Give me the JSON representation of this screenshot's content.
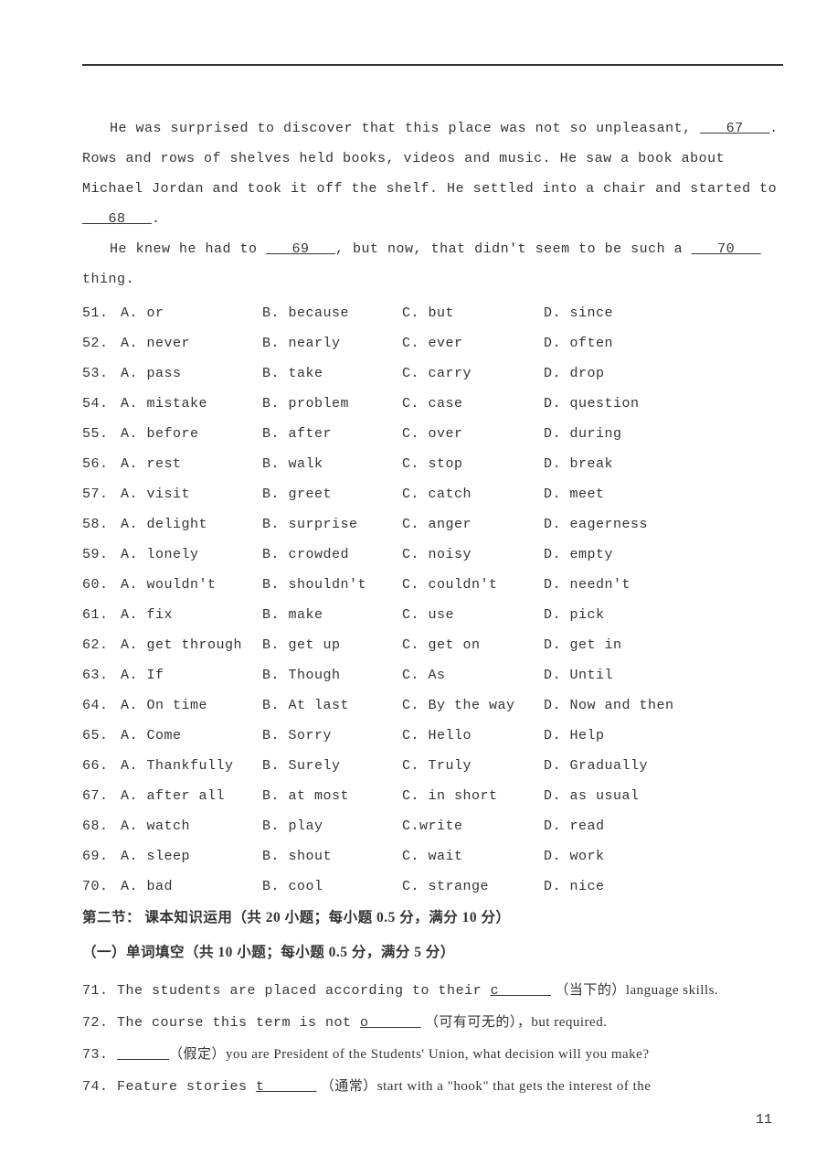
{
  "passage": {
    "p1_a": "He was surprised to discover that this place was not so unpleasant, ",
    "blank67": "   67   ",
    "p1_b": ". Rows and rows of shelves held books, videos and music. He saw a book about Michael Jordan and took it off the shelf. He settled into a chair and started to ",
    "blank68": "   68   ",
    "p1_c": ".",
    "p2_a": "He knew he had to ",
    "blank69": "   69   ",
    "p2_b": ", but now, that didn't seem to be such a ",
    "blank70": "   70   ",
    "p2_c": " thing."
  },
  "options": [
    {
      "n": "51.",
      "a": "A. or",
      "b": "B. because",
      "c": "C. but",
      "d": "D. since"
    },
    {
      "n": "52.",
      "a": "A. never",
      "b": "B. nearly",
      "c": "C. ever",
      "d": "D. often"
    },
    {
      "n": "53.",
      "a": "A. pass",
      "b": "B. take",
      "c": "C. carry",
      "d": "D. drop"
    },
    {
      "n": "54.",
      "a": "A. mistake",
      "b": "B. problem",
      "c": "C. case",
      "d": "D. question"
    },
    {
      "n": "55.",
      "a": "A. before",
      "b": "B. after",
      "c": "C. over",
      "d": "D. during"
    },
    {
      "n": "56.",
      "a": "A. rest",
      "b": "B. walk",
      "c": "C. stop",
      "d": "D. break"
    },
    {
      "n": "57.",
      "a": "A. visit",
      "b": "B. greet",
      "c": "C. catch",
      "d": "D. meet"
    },
    {
      "n": "58.",
      "a": "A. delight",
      "b": "B. surprise",
      "c": "C. anger",
      "d": "D. eagerness"
    },
    {
      "n": "59.",
      "a": "A. lonely",
      "b": "B. crowded",
      "c": "C. noisy",
      "d": "D. empty"
    },
    {
      "n": "60.",
      "a": "A. wouldn't",
      "b": "B. shouldn't",
      "c": "C. couldn't",
      "d": "D. needn't"
    },
    {
      "n": "61.",
      "a": "A. fix",
      "b": "B. make",
      "c": "C. use",
      "d": "D. pick"
    },
    {
      "n": "62.",
      "a": "A. get through",
      "b": "B. get up",
      "c": "C. get on",
      "d": "D. get in"
    },
    {
      "n": "63.",
      "a": "A. If",
      "b": "B. Though",
      "c": "C. As",
      "d": "D. Until"
    },
    {
      "n": "64.",
      "a": "A. On time",
      "b": "B. At last",
      "c": "C. By the way",
      "d": "D. Now and then"
    },
    {
      "n": "65.",
      "a": "A. Come",
      "b": "B. Sorry",
      "c": "C. Hello",
      "d": "D. Help"
    },
    {
      "n": "66.",
      "a": "A. Thankfully",
      "b": "B. Surely",
      "c": "C. Truly",
      "d": "D. Gradually"
    },
    {
      "n": "67.",
      "a": "A. after all",
      "b": "B. at most",
      "c": "C. in short",
      "d": "D. as usual"
    },
    {
      "n": "68.",
      "a": "A. watch",
      "b": "B. play",
      "c": "C.write",
      "d": "D. read"
    },
    {
      "n": "69.",
      "a": "A. sleep",
      "b": "B. shout",
      "c": "C. wait",
      "d": "D. work"
    },
    {
      "n": "70.",
      "a": "A. bad",
      "b": "B. cool",
      "c": "C. strange",
      "d": "D. nice"
    }
  ],
  "section2_header": "第二节：  课本知识运用（共 20 小题；每小题 0.5 分，满分 10 分）",
  "sub_header": "（一）单词填空（共 10 小题；每小题 0.5 分，满分 5 分）",
  "fills": {
    "q71_a": "71. The students are placed according to their ",
    "q71_u": "c      ",
    "q71_b": " （当下的）language skills.",
    "q72_a": "72. The course this term is not ",
    "q72_u": "o      ",
    "q72_b": " （可有可无的），but required.",
    "q73_a": "73. ",
    "q73_u": "      ",
    "q73_b": "（假定）you are President of the Students'  Union, what decision will you make?",
    "q74_a": "74. Feature stories ",
    "q74_u": "t      ",
    "q74_b": " （通常）start with a \"hook\" that gets the interest of the"
  },
  "page_number": "11"
}
